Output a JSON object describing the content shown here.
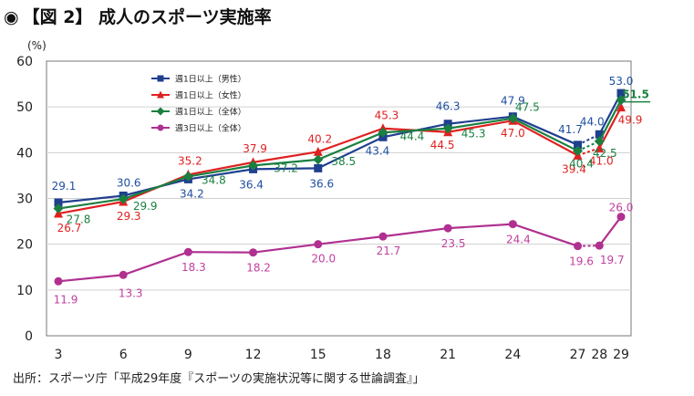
{
  "title": {
    "bullet": "◉",
    "text": "【図 2】 成人のスポーツ実施率"
  },
  "source": "出所：スポーツ庁「平成29年度『スポーツの実施状況等に関する世論調査』」",
  "chart_data": {
    "type": "line",
    "ylabel": "(%)",
    "ylim": [
      0,
      60
    ],
    "yticks": [
      0,
      10,
      20,
      30,
      40,
      50,
      60
    ],
    "x": [
      3,
      6,
      9,
      12,
      15,
      18,
      21,
      24,
      27,
      28,
      29
    ],
    "xticks": [
      "3",
      "6",
      "9",
      "12",
      "15",
      "18",
      "21",
      "24",
      "27",
      "28",
      "29"
    ],
    "legend_position": "top-left",
    "grid": "horizontal",
    "series": [
      {
        "name": "週1日以上（男性）",
        "color": "#1f3f8f",
        "label_color": "#1f4fa0",
        "marker": "square",
        "values": [
          29.1,
          30.6,
          34.2,
          36.4,
          36.6,
          43.4,
          46.3,
          47.9,
          41.7,
          44.0,
          53.0
        ],
        "labels": [
          "29.1",
          "30.6",
          "34.2",
          "36.4",
          "36.6",
          "43.4",
          "46.3",
          "47.9",
          "41.7",
          "44.0",
          "53.0"
        ]
      },
      {
        "name": "週1日以上（女性）",
        "color": "#e02020",
        "label_color": "#e02020",
        "marker": "triangle",
        "values": [
          26.7,
          29.3,
          35.2,
          37.9,
          40.2,
          45.3,
          44.5,
          47.0,
          39.4,
          41.0,
          49.9
        ],
        "labels": [
          "26.7",
          "29.3",
          "35.2",
          "37.9",
          "40.2",
          "45.3",
          "44.5",
          "47.0",
          "39.4",
          "41.0",
          "49.9"
        ]
      },
      {
        "name": "週1日以上（全体）",
        "color": "#1a8040",
        "label_color": "#1a8040",
        "marker": "diamond",
        "values": [
          27.8,
          29.9,
          34.8,
          37.2,
          38.5,
          44.4,
          45.3,
          47.5,
          40.4,
          42.5,
          51.5
        ],
        "labels": [
          "27.8",
          "29.9",
          "34.8",
          "37.2",
          "38.5",
          "44.4",
          "45.3",
          "47.5",
          "40.4",
          "42.5",
          "51.5"
        ]
      },
      {
        "name": "週3日以上（全体）",
        "color": "#b03090",
        "label_color": "#c040a0",
        "marker": "circle",
        "values": [
          11.9,
          13.3,
          18.3,
          18.2,
          20.0,
          21.7,
          23.5,
          24.4,
          19.6,
          19.7,
          26.0
        ],
        "labels": [
          "11.9",
          "13.3",
          "18.3",
          "18.2",
          "20.0",
          "21.7",
          "23.5",
          "24.4",
          "19.6",
          "19.7",
          "26.0"
        ]
      }
    ]
  }
}
